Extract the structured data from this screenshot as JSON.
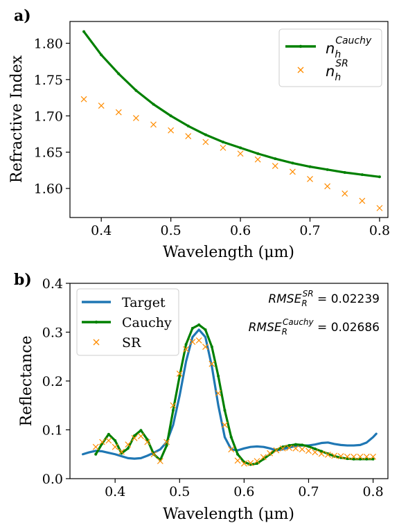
{
  "chart_data": [
    {
      "panel_label": "a)",
      "type": "line",
      "xlabel": "Wavelength (μm)",
      "ylabel": "Refractive Index",
      "xlim": [
        0.355,
        0.812
      ],
      "ylim": [
        1.56,
        1.83
      ],
      "xticks": [
        0.4,
        0.5,
        0.6,
        0.7,
        0.8
      ],
      "xtick_labels": [
        "0.4",
        "0.5",
        "0.6",
        "0.7",
        "0.8"
      ],
      "yticks": [
        1.6,
        1.65,
        1.7,
        1.75,
        1.8
      ],
      "ytick_labels": [
        "1.60",
        "1.65",
        "1.70",
        "1.75",
        "1.80"
      ],
      "grid": false,
      "legend_position": "top-right",
      "series": [
        {
          "name": "n_h^Cauchy",
          "legend_base": "n",
          "legend_sub": "h",
          "legend_sup": "Cauchy",
          "style": "line+dot",
          "color": "#008000",
          "x": [
            0.375,
            0.4,
            0.425,
            0.45,
            0.475,
            0.5,
            0.525,
            0.55,
            0.575,
            0.6,
            0.625,
            0.65,
            0.675,
            0.7,
            0.725,
            0.75,
            0.775,
            0.8
          ],
          "y": [
            1.816,
            1.784,
            1.758,
            1.735,
            1.716,
            1.7,
            1.686,
            1.674,
            1.664,
            1.656,
            1.648,
            1.641,
            1.635,
            1.63,
            1.626,
            1.622,
            1.619,
            1.616
          ]
        },
        {
          "name": "n_h^SR",
          "legend_base": "n",
          "legend_sub": "h",
          "legend_sup": "SR",
          "style": "x-markers",
          "color": "#ff8c00",
          "x": [
            0.375,
            0.4,
            0.425,
            0.45,
            0.475,
            0.5,
            0.525,
            0.55,
            0.575,
            0.6,
            0.625,
            0.65,
            0.675,
            0.7,
            0.725,
            0.75,
            0.775,
            0.8
          ],
          "y": [
            1.723,
            1.714,
            1.705,
            1.697,
            1.688,
            1.68,
            1.672,
            1.664,
            1.656,
            1.648,
            1.64,
            1.631,
            1.623,
            1.613,
            1.603,
            1.593,
            1.583,
            1.573
          ]
        }
      ]
    },
    {
      "panel_label": "b)",
      "type": "line",
      "xlabel": "Wavelength (μm)",
      "ylabel": "Reflectance",
      "xlim": [
        0.33,
        0.823
      ],
      "ylim": [
        0.0,
        0.4
      ],
      "xticks": [
        0.4,
        0.5,
        0.6,
        0.7,
        0.8
      ],
      "xtick_labels": [
        "0.4",
        "0.5",
        "0.6",
        "0.7",
        "0.8"
      ],
      "yticks": [
        0.0,
        0.1,
        0.2,
        0.3,
        0.4
      ],
      "ytick_labels": [
        "0.0",
        "0.1",
        "0.2",
        "0.3",
        "0.4"
      ],
      "grid": false,
      "legend_position": "top-left",
      "annotations": [
        {
          "base": "RMSE",
          "sub": "R",
          "sup": "SR",
          "value_text": " = 0.02239"
        },
        {
          "base": "RMSE",
          "sub": "R",
          "sup": "Cauchy",
          "value_text": " = 0.02686"
        }
      ],
      "series": [
        {
          "name": "Target",
          "style": "line",
          "color": "#1f77b4",
          "x": [
            0.35,
            0.36,
            0.37,
            0.38,
            0.39,
            0.4,
            0.41,
            0.42,
            0.43,
            0.44,
            0.45,
            0.46,
            0.47,
            0.48,
            0.49,
            0.5,
            0.51,
            0.52,
            0.53,
            0.54,
            0.55,
            0.56,
            0.57,
            0.58,
            0.59,
            0.6,
            0.61,
            0.62,
            0.63,
            0.64,
            0.65,
            0.66,
            0.67,
            0.68,
            0.69,
            0.7,
            0.71,
            0.72,
            0.73,
            0.74,
            0.75,
            0.76,
            0.77,
            0.78,
            0.79,
            0.8,
            0.805
          ],
          "y": [
            0.05,
            0.054,
            0.057,
            0.056,
            0.053,
            0.05,
            0.046,
            0.042,
            0.041,
            0.042,
            0.047,
            0.053,
            0.06,
            0.075,
            0.11,
            0.17,
            0.24,
            0.29,
            0.305,
            0.29,
            0.23,
            0.15,
            0.085,
            0.06,
            0.058,
            0.062,
            0.065,
            0.066,
            0.065,
            0.062,
            0.058,
            0.06,
            0.064,
            0.067,
            0.068,
            0.068,
            0.07,
            0.073,
            0.074,
            0.071,
            0.069,
            0.068,
            0.068,
            0.069,
            0.074,
            0.085,
            0.092
          ]
        },
        {
          "name": "Cauchy",
          "style": "line+dot",
          "color": "#008000",
          "x": [
            0.37,
            0.38,
            0.39,
            0.4,
            0.41,
            0.42,
            0.43,
            0.44,
            0.45,
            0.46,
            0.47,
            0.48,
            0.49,
            0.5,
            0.51,
            0.52,
            0.53,
            0.54,
            0.55,
            0.56,
            0.57,
            0.58,
            0.59,
            0.6,
            0.61,
            0.62,
            0.63,
            0.64,
            0.65,
            0.66,
            0.67,
            0.68,
            0.69,
            0.7,
            0.71,
            0.72,
            0.73,
            0.74,
            0.75,
            0.76,
            0.77,
            0.78,
            0.79,
            0.8
          ],
          "y": [
            0.05,
            0.072,
            0.091,
            0.078,
            0.052,
            0.062,
            0.088,
            0.099,
            0.08,
            0.05,
            0.038,
            0.068,
            0.14,
            0.21,
            0.275,
            0.308,
            0.315,
            0.305,
            0.27,
            0.21,
            0.14,
            0.085,
            0.05,
            0.034,
            0.029,
            0.031,
            0.04,
            0.05,
            0.059,
            0.065,
            0.068,
            0.07,
            0.069,
            0.066,
            0.061,
            0.056,
            0.051,
            0.046,
            0.043,
            0.041,
            0.04,
            0.04,
            0.04,
            0.04
          ]
        },
        {
          "name": "SR",
          "style": "x-markers",
          "color": "#ff8c00",
          "x": [
            0.37,
            0.38,
            0.39,
            0.4,
            0.41,
            0.42,
            0.43,
            0.44,
            0.45,
            0.46,
            0.47,
            0.48,
            0.49,
            0.5,
            0.51,
            0.52,
            0.53,
            0.54,
            0.55,
            0.56,
            0.57,
            0.58,
            0.59,
            0.6,
            0.61,
            0.62,
            0.63,
            0.64,
            0.65,
            0.66,
            0.67,
            0.68,
            0.69,
            0.7,
            0.71,
            0.72,
            0.73,
            0.74,
            0.75,
            0.76,
            0.77,
            0.78,
            0.79,
            0.8
          ],
          "y": [
            0.065,
            0.075,
            0.078,
            0.065,
            0.055,
            0.07,
            0.083,
            0.087,
            0.075,
            0.05,
            0.036,
            0.075,
            0.15,
            0.215,
            0.265,
            0.28,
            0.283,
            0.27,
            0.235,
            0.175,
            0.11,
            0.06,
            0.037,
            0.031,
            0.032,
            0.036,
            0.044,
            0.052,
            0.058,
            0.062,
            0.063,
            0.062,
            0.06,
            0.057,
            0.054,
            0.051,
            0.049,
            0.047,
            0.046,
            0.045,
            0.045,
            0.045,
            0.045,
            0.045
          ]
        }
      ]
    }
  ]
}
